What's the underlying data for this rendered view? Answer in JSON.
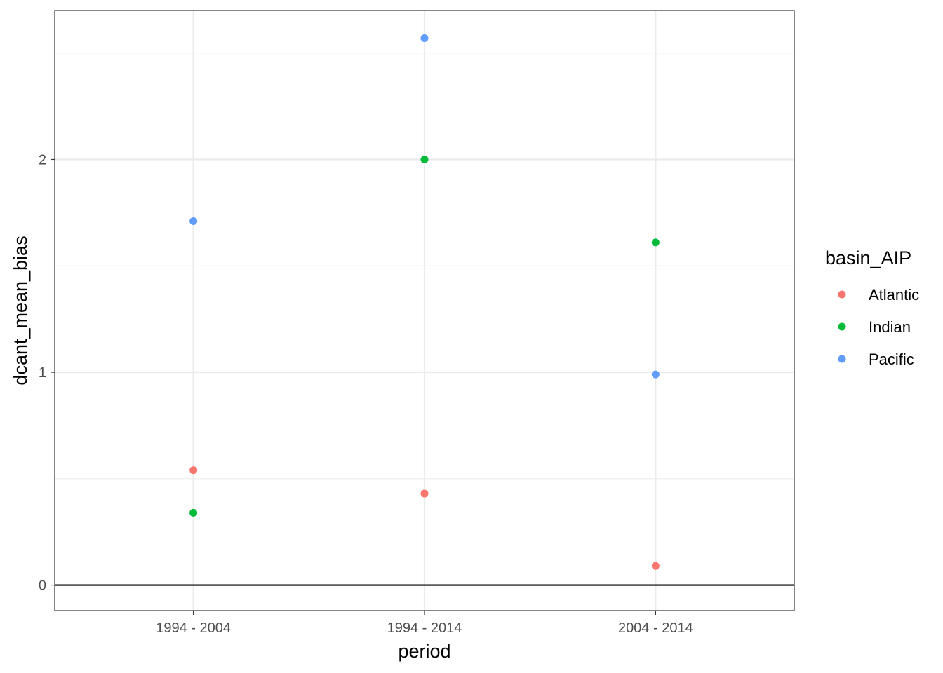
{
  "chart_data": {
    "type": "scatter",
    "xlabel": "period",
    "ylabel": "dcant_mean_bias",
    "categories": [
      "1994 - 2004",
      "1994 - 2014",
      "2004 - 2014"
    ],
    "ylim": [
      -0.12,
      2.7
    ],
    "y_ticks": [
      0,
      1,
      2
    ],
    "y_tick_labels": [
      "0",
      "1",
      "2"
    ],
    "y_minor_ticks": [
      0.5,
      1.5,
      2.5
    ],
    "grid": true,
    "reference_line": {
      "y": 0,
      "color": "#000000"
    },
    "legend": {
      "title": "basin_AIP",
      "position": "right"
    },
    "series": [
      {
        "name": "Atlantic",
        "color": "#F8766D",
        "values": [
          0.54,
          0.43,
          0.09
        ]
      },
      {
        "name": "Indian",
        "color": "#00BA38",
        "values": [
          0.34,
          2.0,
          1.61
        ]
      },
      {
        "name": "Pacific",
        "color": "#619CFF",
        "values": [
          1.71,
          2.57,
          0.99
        ]
      }
    ]
  }
}
